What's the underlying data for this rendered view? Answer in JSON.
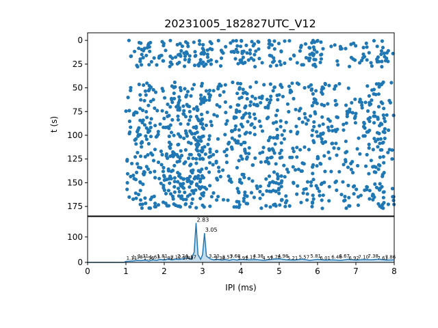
{
  "title": "20231005_182827UTC_V12",
  "colors": {
    "series": "#1f77b4",
    "axis": "#000000",
    "background": "#ffffff"
  },
  "chart_data": [
    {
      "type": "scatter",
      "name": "raster",
      "ylabel": "t (s)",
      "xlabel": "",
      "xlim": [
        0,
        8
      ],
      "ylim": [
        185,
        -8
      ],
      "y_inverted": true,
      "grid": false,
      "ytick_labels": [
        "0",
        "25",
        "50",
        "75",
        "100",
        "125",
        "150",
        "175"
      ],
      "ytick_values": [
        0,
        25,
        50,
        75,
        100,
        125,
        150,
        175
      ],
      "x_range_of_points": [
        1.0,
        8.0
      ],
      "t_range_of_points": [
        0,
        175
      ],
      "bands": [
        {
          "t": [
            0,
            28
          ],
          "density": "medium"
        },
        {
          "t": [
            44,
            110
          ],
          "density": "high"
        },
        {
          "t": [
            112,
            177
          ],
          "density": "high"
        }
      ],
      "dense_columns": [
        1.5,
        2.1,
        2.5,
        2.83,
        3.05,
        4.0,
        4.9,
        6.0,
        7.6
      ]
    },
    {
      "type": "line",
      "name": "histogram",
      "xlabel": "IPI (ms)",
      "ylabel": "",
      "xlim": [
        0,
        8
      ],
      "ylim": [
        0,
        180
      ],
      "grid": false,
      "xtick_labels": [
        "0",
        "1",
        "2",
        "3",
        "4",
        "5",
        "6",
        "7",
        "8"
      ],
      "xtick_values": [
        0,
        1,
        2,
        3,
        4,
        5,
        6,
        7,
        8
      ],
      "ytick_labels": [
        "0",
        "100"
      ],
      "ytick_values": [
        0,
        100
      ],
      "x": [
        0,
        0.95,
        1.0,
        1.1,
        1.2,
        1.3,
        1.4,
        1.5,
        1.6,
        1.7,
        1.8,
        1.9,
        2.0,
        2.1,
        2.2,
        2.3,
        2.4,
        2.5,
        2.6,
        2.7,
        2.78,
        2.83,
        2.88,
        2.95,
        3.0,
        3.05,
        3.1,
        3.2,
        3.3,
        3.4,
        3.5,
        3.6,
        3.7,
        3.8,
        3.9,
        4.0,
        4.2,
        4.4,
        4.6,
        4.8,
        5.0,
        5.2,
        5.4,
        5.6,
        5.8,
        6.0,
        6.2,
        6.4,
        6.6,
        6.8,
        7.0,
        7.2,
        7.4,
        7.6,
        7.8,
        8.0
      ],
      "y": [
        0,
        0,
        4,
        5,
        6,
        8,
        7,
        9,
        6,
        10,
        8,
        12,
        9,
        14,
        10,
        13,
        12,
        15,
        18,
        12,
        40,
        155,
        30,
        12,
        30,
        115,
        25,
        14,
        10,
        12,
        9,
        11,
        8,
        12,
        9,
        12,
        10,
        11,
        8,
        12,
        14,
        10,
        9,
        13,
        8,
        12,
        9,
        10,
        8,
        12,
        9,
        11,
        10,
        13,
        9,
        10
      ],
      "peak_labels": [
        {
          "x": 2.83,
          "y": 155,
          "text": "2.83"
        },
        {
          "x": 3.05,
          "y": 115,
          "text": "3.05"
        }
      ],
      "minor_labels": [
        {
          "x": 1.15,
          "text": "1.11"
        },
        {
          "x": 1.3,
          "text": "1.18"
        },
        {
          "x": 1.45,
          "text": "1.31"
        },
        {
          "x": 1.6,
          "text": "1.56"
        },
        {
          "x": 1.75,
          "text": "1.63"
        },
        {
          "x": 1.95,
          "text": "1.81"
        },
        {
          "x": 2.1,
          "text": "1.92"
        },
        {
          "x": 2.3,
          "text": "2.12"
        },
        {
          "x": 2.48,
          "text": "2.24"
        },
        {
          "x": 2.62,
          "text": "2.48"
        },
        {
          "x": 2.7,
          "text": "2.57"
        },
        {
          "x": 3.3,
          "text": "3.20"
        },
        {
          "x": 3.45,
          "text": "3.38"
        },
        {
          "x": 3.65,
          "text": "3.57"
        },
        {
          "x": 3.85,
          "text": "3.68"
        },
        {
          "x": 4.05,
          "text": "3.91"
        },
        {
          "x": 4.25,
          "text": "4.12"
        },
        {
          "x": 4.45,
          "text": "4.38"
        },
        {
          "x": 4.7,
          "text": "4.57"
        },
        {
          "x": 4.9,
          "text": "4.78"
        },
        {
          "x": 5.1,
          "text": "4.98"
        },
        {
          "x": 5.35,
          "text": "5.21"
        },
        {
          "x": 5.65,
          "text": "5.57"
        },
        {
          "x": 5.95,
          "text": "5.81"
        },
        {
          "x": 6.2,
          "text": "6.01"
        },
        {
          "x": 6.5,
          "text": "6.46"
        },
        {
          "x": 6.7,
          "text": "6.67"
        },
        {
          "x": 6.95,
          "text": "6.92"
        },
        {
          "x": 7.2,
          "text": "7.10"
        },
        {
          "x": 7.45,
          "text": "7.38"
        },
        {
          "x": 7.7,
          "text": "7.63"
        },
        {
          "x": 7.9,
          "text": "7.86"
        }
      ]
    }
  ]
}
